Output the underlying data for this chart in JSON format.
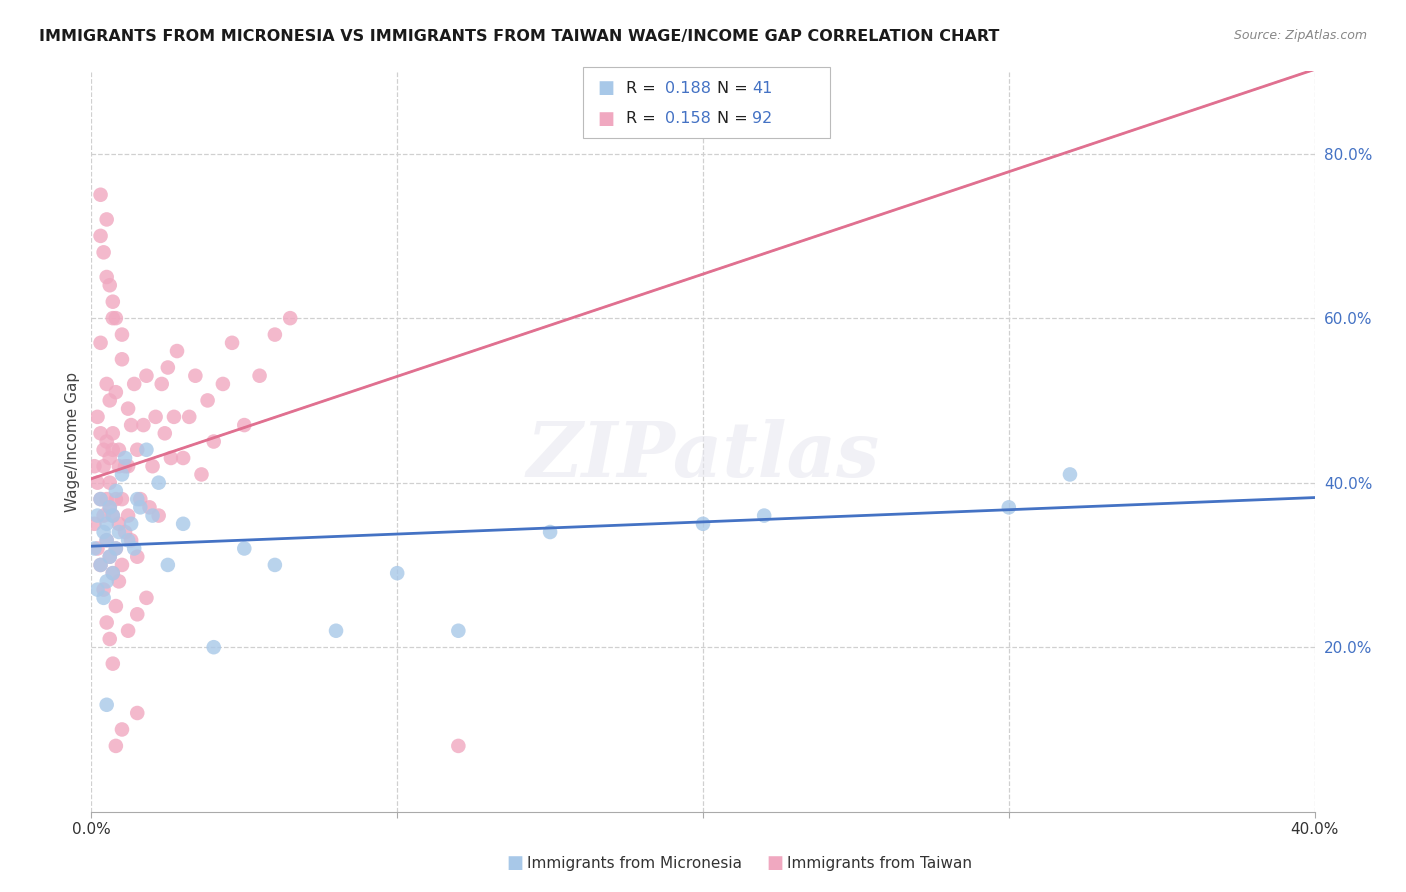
{
  "title": "IMMIGRANTS FROM MICRONESIA VS IMMIGRANTS FROM TAIWAN WAGE/INCOME GAP CORRELATION CHART",
  "source": "Source: ZipAtlas.com",
  "ylabel": "Wage/Income Gap",
  "xlim": [
    0.0,
    0.4
  ],
  "ylim": [
    0.0,
    0.9
  ],
  "ytick_positions": [
    0.2,
    0.4,
    0.6,
    0.8
  ],
  "ytick_labels": [
    "20.0%",
    "40.0%",
    "60.0%",
    "80.0%"
  ],
  "grid_color": "#d0d0d0",
  "background_color": "#ffffff",
  "series1_label": "Immigrants from Micronesia",
  "series2_label": "Immigrants from Taiwan",
  "series1_color": "#a8c8e8",
  "series2_color": "#f0a8c0",
  "series1_trend_color": "#4472c4",
  "series2_trend_color": "#e07090",
  "series1_R": 0.188,
  "series1_N": 41,
  "series2_R": 0.158,
  "series2_N": 92,
  "micronesia_x": [
    0.001,
    0.002,
    0.002,
    0.003,
    0.003,
    0.004,
    0.004,
    0.005,
    0.005,
    0.005,
    0.006,
    0.006,
    0.007,
    0.007,
    0.008,
    0.008,
    0.009,
    0.01,
    0.011,
    0.012,
    0.013,
    0.014,
    0.015,
    0.016,
    0.018,
    0.02,
    0.022,
    0.025,
    0.03,
    0.04,
    0.05,
    0.06,
    0.08,
    0.1,
    0.12,
    0.15,
    0.2,
    0.22,
    0.3,
    0.32,
    0.005
  ],
  "micronesia_y": [
    0.32,
    0.27,
    0.36,
    0.3,
    0.38,
    0.34,
    0.26,
    0.35,
    0.28,
    0.33,
    0.31,
    0.37,
    0.36,
    0.29,
    0.32,
    0.39,
    0.34,
    0.41,
    0.43,
    0.33,
    0.35,
    0.32,
    0.38,
    0.37,
    0.44,
    0.36,
    0.4,
    0.3,
    0.35,
    0.2,
    0.32,
    0.3,
    0.22,
    0.29,
    0.22,
    0.34,
    0.35,
    0.36,
    0.37,
    0.41,
    0.13
  ],
  "taiwan_x": [
    0.001,
    0.001,
    0.002,
    0.002,
    0.002,
    0.003,
    0.003,
    0.003,
    0.003,
    0.004,
    0.004,
    0.004,
    0.005,
    0.005,
    0.005,
    0.005,
    0.006,
    0.006,
    0.006,
    0.006,
    0.007,
    0.007,
    0.007,
    0.007,
    0.008,
    0.008,
    0.008,
    0.009,
    0.009,
    0.009,
    0.01,
    0.01,
    0.01,
    0.011,
    0.011,
    0.012,
    0.012,
    0.013,
    0.013,
    0.014,
    0.015,
    0.015,
    0.016,
    0.017,
    0.018,
    0.019,
    0.02,
    0.021,
    0.022,
    0.023,
    0.024,
    0.025,
    0.026,
    0.027,
    0.028,
    0.03,
    0.032,
    0.034,
    0.036,
    0.038,
    0.04,
    0.043,
    0.046,
    0.05,
    0.055,
    0.06,
    0.065,
    0.003,
    0.004,
    0.005,
    0.006,
    0.007,
    0.008,
    0.01,
    0.012,
    0.015,
    0.018,
    0.003,
    0.005,
    0.008,
    0.01,
    0.015,
    0.007,
    0.009,
    0.012,
    0.006,
    0.008,
    0.004,
    0.005,
    0.006,
    0.12,
    0.007
  ],
  "taiwan_y": [
    0.35,
    0.42,
    0.32,
    0.4,
    0.48,
    0.3,
    0.38,
    0.46,
    0.57,
    0.42,
    0.36,
    0.44,
    0.33,
    0.38,
    0.45,
    0.52,
    0.31,
    0.37,
    0.43,
    0.5,
    0.29,
    0.36,
    0.44,
    0.6,
    0.32,
    0.38,
    0.51,
    0.28,
    0.35,
    0.42,
    0.3,
    0.38,
    0.55,
    0.34,
    0.42,
    0.36,
    0.49,
    0.33,
    0.47,
    0.52,
    0.31,
    0.44,
    0.38,
    0.47,
    0.53,
    0.37,
    0.42,
    0.48,
    0.36,
    0.52,
    0.46,
    0.54,
    0.43,
    0.48,
    0.56,
    0.43,
    0.48,
    0.53,
    0.41,
    0.5,
    0.45,
    0.52,
    0.57,
    0.47,
    0.53,
    0.58,
    0.6,
    0.7,
    0.68,
    0.65,
    0.64,
    0.62,
    0.6,
    0.58,
    0.22,
    0.24,
    0.26,
    0.75,
    0.72,
    0.08,
    0.1,
    0.12,
    0.46,
    0.44,
    0.42,
    0.4,
    0.25,
    0.27,
    0.23,
    0.21,
    0.08,
    0.18
  ],
  "watermark_text": "ZIPatlas",
  "watermark_color": "#e8e8f0",
  "title_fontsize": 11.5,
  "source_fontsize": 9,
  "tick_fontsize": 11,
  "ylabel_fontsize": 11
}
